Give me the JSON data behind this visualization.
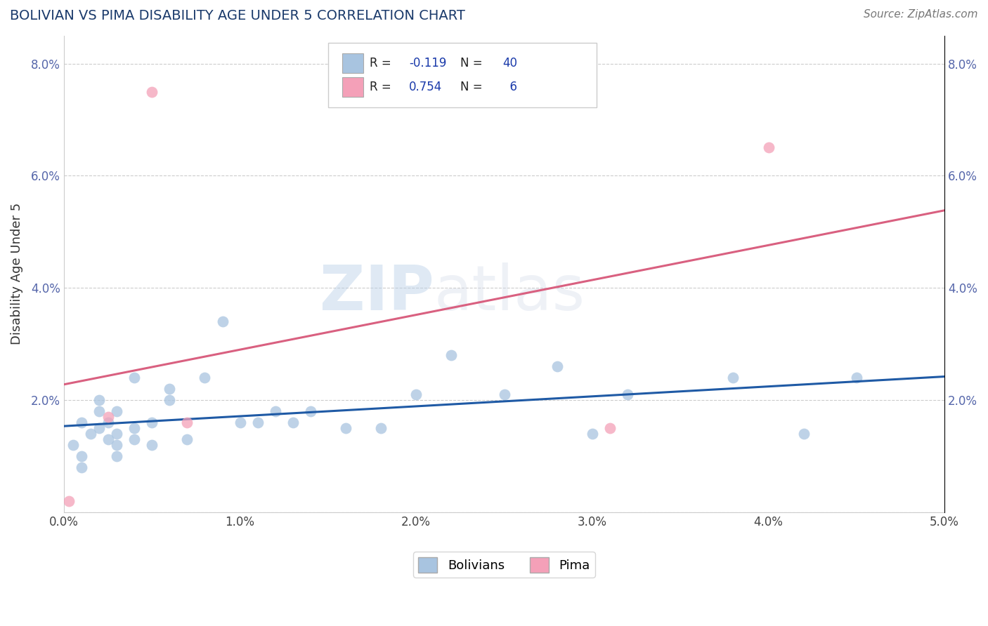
{
  "title": "BOLIVIAN VS PIMA DISABILITY AGE UNDER 5 CORRELATION CHART",
  "source": "Source: ZipAtlas.com",
  "ylabel": "Disability Age Under 5",
  "xlim": [
    0.0,
    0.05
  ],
  "ylim": [
    0.0,
    0.085
  ],
  "xtick_labels": [
    "0.0%",
    "1.0%",
    "2.0%",
    "3.0%",
    "4.0%",
    "5.0%"
  ],
  "xtick_vals": [
    0.0,
    0.01,
    0.02,
    0.03,
    0.04,
    0.05
  ],
  "ytick_labels": [
    "",
    "2.0%",
    "4.0%",
    "6.0%",
    "8.0%"
  ],
  "ytick_vals": [
    0.0,
    0.02,
    0.04,
    0.06,
    0.08
  ],
  "r_bolivians": -0.119,
  "n_bolivians": 40,
  "r_pima": 0.754,
  "n_pima": 6,
  "bolivian_color": "#a8c4e0",
  "pima_color": "#f4a0b8",
  "trend_bolivian_color": "#1f5aa5",
  "trend_pima_color": "#d96080",
  "watermark_zip": "ZIP",
  "watermark_atlas": "atlas",
  "bolivians_x": [
    0.0005,
    0.001,
    0.001,
    0.001,
    0.0015,
    0.002,
    0.002,
    0.002,
    0.0025,
    0.0025,
    0.003,
    0.003,
    0.003,
    0.003,
    0.004,
    0.004,
    0.004,
    0.005,
    0.005,
    0.006,
    0.006,
    0.007,
    0.008,
    0.009,
    0.01,
    0.011,
    0.012,
    0.013,
    0.014,
    0.016,
    0.018,
    0.02,
    0.022,
    0.025,
    0.028,
    0.03,
    0.032,
    0.038,
    0.042,
    0.045
  ],
  "bolivians_y": [
    0.012,
    0.016,
    0.01,
    0.008,
    0.014,
    0.018,
    0.015,
    0.02,
    0.013,
    0.016,
    0.012,
    0.014,
    0.01,
    0.018,
    0.015,
    0.013,
    0.024,
    0.016,
    0.012,
    0.022,
    0.02,
    0.013,
    0.024,
    0.034,
    0.016,
    0.016,
    0.018,
    0.016,
    0.018,
    0.015,
    0.015,
    0.021,
    0.028,
    0.021,
    0.026,
    0.014,
    0.021,
    0.024,
    0.014,
    0.024
  ],
  "pima_x": [
    0.0003,
    0.0025,
    0.005,
    0.007,
    0.031,
    0.04
  ],
  "pima_y": [
    0.002,
    0.017,
    0.075,
    0.016,
    0.015,
    0.065
  ],
  "background_color": "#ffffff",
  "grid_color": "#cccccc"
}
